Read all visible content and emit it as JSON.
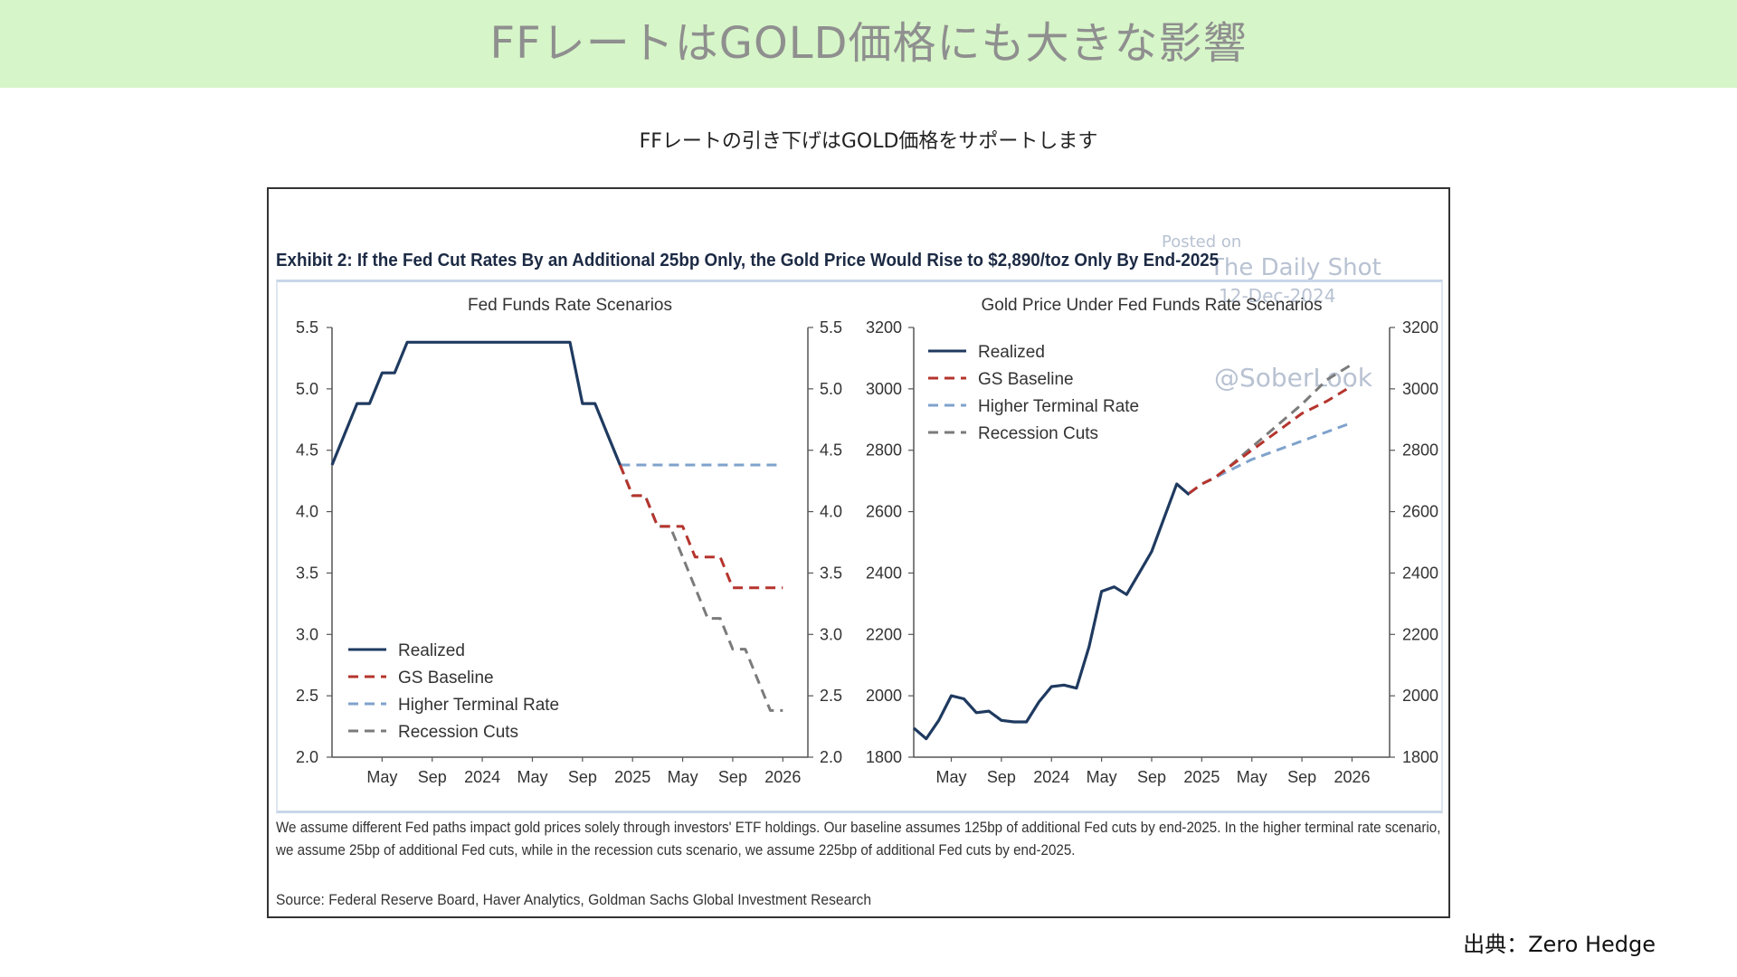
{
  "header": {
    "title": "FFレートはGOLD価格にも大きな影響"
  },
  "subtitle": "FFレートの引き下げはGOLD価格をサポートします",
  "exhibit": {
    "title": "Exhibit 2: If the Fed Cut Rates By an Additional 25bp Only, the Gold Price Would Rise to $2,890/toz Only By End-2025",
    "note": "We assume different Fed paths impact gold prices solely through investors' ETF holdings. Our baseline assumes 125bp of additional Fed cuts by end-2025. In the higher terminal rate scenario, we assume 25bp of additional Fed cuts, while in the recession cuts scenario, we assume 225bp of additional Fed cuts by end-2025.",
    "source": "Source: Federal Reserve Board, Haver Analytics, Goldman Sachs Global Investment Research"
  },
  "watermark": {
    "posted": "Posted on",
    "site": "The Daily Shot",
    "date": "12-Dec-2024",
    "handle": "@SoberLook"
  },
  "credit": "出典：Zero Hedge",
  "colors": {
    "realized": "#1f3a60",
    "gs_baseline": "#b5342d",
    "higher_terminal": "#7fa2cc",
    "recession": "#7b7b7b"
  },
  "chart_data": [
    {
      "type": "line",
      "title": "Fed Funds Rate Scenarios",
      "x_ticks": [
        {
          "x": 4,
          "label": "May"
        },
        {
          "x": 8,
          "label": "Sep"
        },
        {
          "x": 12,
          "label": "2024"
        },
        {
          "x": 16,
          "label": "May"
        },
        {
          "x": 20,
          "label": "Sep"
        },
        {
          "x": 24,
          "label": "2025"
        },
        {
          "x": 28,
          "label": "May"
        },
        {
          "x": 32,
          "label": "Sep"
        },
        {
          "x": 36,
          "label": "2026"
        }
      ],
      "xlim": [
        0,
        38
      ],
      "ylim": [
        2.0,
        5.5
      ],
      "y_ticks": [
        "2.0",
        "2.5",
        "3.0",
        "3.5",
        "4.0",
        "4.5",
        "5.0",
        "5.5"
      ],
      "legend_position": "bottom-left",
      "series": [
        {
          "name": "Realized",
          "style": "solid",
          "color": "#1f3a60",
          "x": [
            0,
            2,
            3,
            4,
            5,
            6,
            7,
            19,
            20,
            21,
            22,
            23
          ],
          "y": [
            4.38,
            4.88,
            4.88,
            5.13,
            5.13,
            5.38,
            5.38,
            5.38,
            4.88,
            4.88,
            4.63,
            4.38
          ]
        },
        {
          "name": "GS Baseline",
          "style": "dashed",
          "color": "#b5342d",
          "x": [
            23,
            24,
            25,
            26,
            27,
            28,
            29,
            30,
            31,
            32,
            33,
            34,
            35,
            36
          ],
          "y": [
            4.38,
            4.13,
            4.13,
            3.88,
            3.88,
            3.88,
            3.63,
            3.63,
            3.63,
            3.38,
            3.38,
            3.38,
            3.38,
            3.38
          ]
        },
        {
          "name": "Higher Terminal Rate",
          "style": "dashed",
          "color": "#7fa2cc",
          "x": [
            23,
            24,
            36
          ],
          "y": [
            4.38,
            4.38,
            4.38
          ]
        },
        {
          "name": "Recession Cuts",
          "style": "dashed",
          "color": "#7b7b7b",
          "x": [
            22,
            24,
            25,
            26,
            27,
            28,
            29,
            30,
            31,
            32,
            33,
            34,
            35,
            36
          ],
          "y": [
            4.63,
            4.13,
            4.13,
            3.88,
            3.88,
            3.63,
            3.38,
            3.13,
            3.13,
            2.88,
            2.88,
            2.63,
            2.38,
            2.38
          ]
        }
      ]
    },
    {
      "type": "line",
      "title": "Gold Price Under Fed Funds Rate Scenarios",
      "x_ticks": [
        {
          "x": 4,
          "label": "May"
        },
        {
          "x": 8,
          "label": "Sep"
        },
        {
          "x": 12,
          "label": "2024"
        },
        {
          "x": 16,
          "label": "May"
        },
        {
          "x": 20,
          "label": "Sep"
        },
        {
          "x": 24,
          "label": "2025"
        },
        {
          "x": 28,
          "label": "May"
        },
        {
          "x": 32,
          "label": "Sep"
        },
        {
          "x": 36,
          "label": "2026"
        }
      ],
      "xlim": [
        1,
        39
      ],
      "ylim": [
        1800,
        3200
      ],
      "y_ticks": [
        "1800",
        "2000",
        "2200",
        "2400",
        "2600",
        "2800",
        "3000",
        "3200"
      ],
      "legend_position": "top-left",
      "series": [
        {
          "name": "Realized",
          "style": "solid",
          "color": "#1f3a60",
          "x": [
            1,
            2,
            3,
            4,
            5,
            6,
            7,
            8,
            9,
            10,
            11,
            12,
            13,
            14,
            15,
            16,
            17,
            18,
            19,
            20,
            21,
            22,
            23
          ],
          "y": [
            1895,
            1860,
            1920,
            2000,
            1990,
            1945,
            1950,
            1920,
            1915,
            1915,
            1980,
            2030,
            2035,
            2025,
            2160,
            2340,
            2355,
            2330,
            2400,
            2470,
            2580,
            2690,
            2655
          ]
        },
        {
          "name": "GS Baseline",
          "style": "dashed",
          "color": "#b5342d",
          "x": [
            23,
            24,
            25,
            26,
            28,
            30,
            32,
            34,
            36
          ],
          "y": [
            2660,
            2690,
            2710,
            2740,
            2800,
            2860,
            2920,
            2960,
            3010
          ]
        },
        {
          "name": "Higher Terminal Rate",
          "style": "dashed",
          "color": "#7fa2cc",
          "x": [
            23,
            24,
            25,
            26,
            28,
            30,
            32,
            34,
            36
          ],
          "y": [
            2660,
            2690,
            2710,
            2730,
            2770,
            2800,
            2830,
            2860,
            2890
          ]
        },
        {
          "name": "Recession Cuts",
          "style": "dashed",
          "color": "#7b7b7b",
          "x": [
            23,
            24,
            25,
            26,
            28,
            30,
            32,
            34,
            36
          ],
          "y": [
            2660,
            2690,
            2710,
            2740,
            2810,
            2880,
            2950,
            3030,
            3080
          ]
        }
      ]
    }
  ]
}
